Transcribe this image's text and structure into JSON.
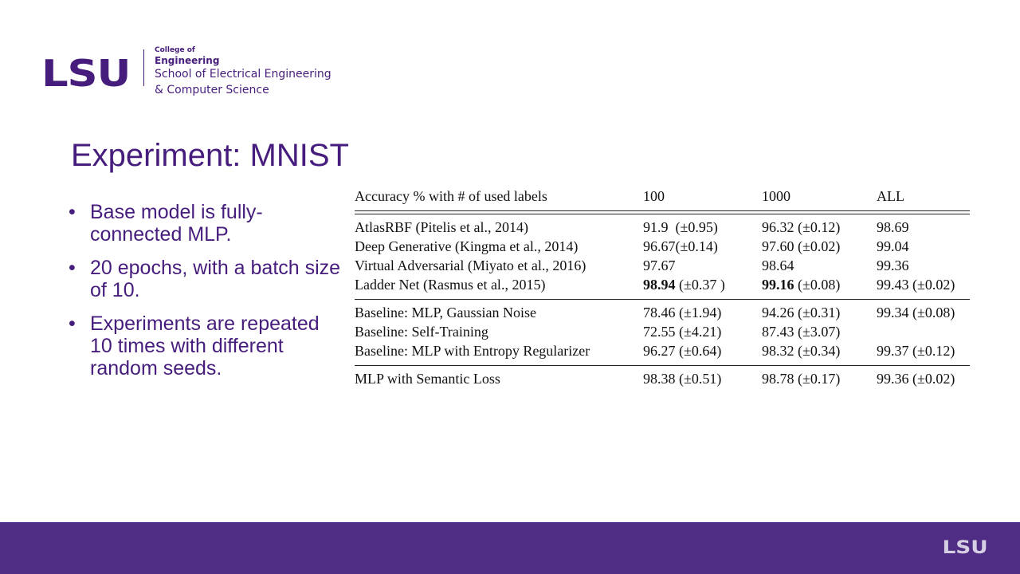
{
  "logo": {
    "mark": "LSU",
    "line1": "College of",
    "line2": "Engineering",
    "line3": "School of Electrical Engineering",
    "line4": "& Computer Science"
  },
  "title": "Experiment: MNIST",
  "bullets": [
    "Base model is fully-connected MLP.",
    "20 epochs, with a batch size of 10.",
    "Experiments are repeated 10 times with different random seeds."
  ],
  "table": {
    "header": [
      "Accuracy % with # of used labels",
      "100",
      "1000",
      "ALL"
    ],
    "groups": [
      [
        {
          "name": "AtlasRBF (Pitelis et al., 2014)",
          "v100": "91.9",
          "e100": "(±0.95)",
          "v1000": "96.32",
          "e1000": "(±0.12)",
          "vall": "98.69",
          "eall": ""
        },
        {
          "name": "Deep Generative (Kingma et al., 2014)",
          "v100": "96.67",
          "e100": "(±0.14)",
          "v1000": "97.60",
          "e1000": "(±0.02)",
          "vall": "99.04",
          "eall": ""
        },
        {
          "name": "Virtual Adversarial (Miyato et al., 2016)",
          "v100": "97.67",
          "e100": "",
          "v1000": "98.64",
          "e1000": "",
          "vall": "99.36",
          "eall": ""
        },
        {
          "name": "Ladder Net (Rasmus et al., 2015)",
          "v100": "98.94",
          "e100": "(±0.37 )",
          "v1000": "99.16",
          "e1000": "(±0.08)",
          "vall": "99.43",
          "eall": "(±0.02)"
        }
      ],
      [
        {
          "name": "Baseline: MLP, Gaussian Noise",
          "v100": "78.46",
          "e100": "(±1.94)",
          "v1000": "94.26",
          "e1000": "(±0.31)",
          "vall": "99.34",
          "eall": "(±0.08)"
        },
        {
          "name": "Baseline: Self-Training",
          "v100": "72.55",
          "e100": "(±4.21)",
          "v1000": "87.43",
          "e1000": "(±3.07)",
          "vall": "",
          "eall": ""
        },
        {
          "name": "Baseline: MLP with Entropy Regularizer",
          "v100": "96.27",
          "e100": "(±0.64)",
          "v1000": "98.32",
          "e1000": "(±0.34)",
          "vall": "99.37",
          "eall": "(±0.12)"
        }
      ],
      [
        {
          "name": "MLP with Semantic Loss",
          "v100": "98.38",
          "e100": "(±0.51)",
          "v1000": "98.78",
          "e1000": "(±0.17)",
          "vall": "99.36",
          "eall": "(±0.02)"
        }
      ]
    ]
  },
  "footer": {
    "mark": "LSU"
  }
}
